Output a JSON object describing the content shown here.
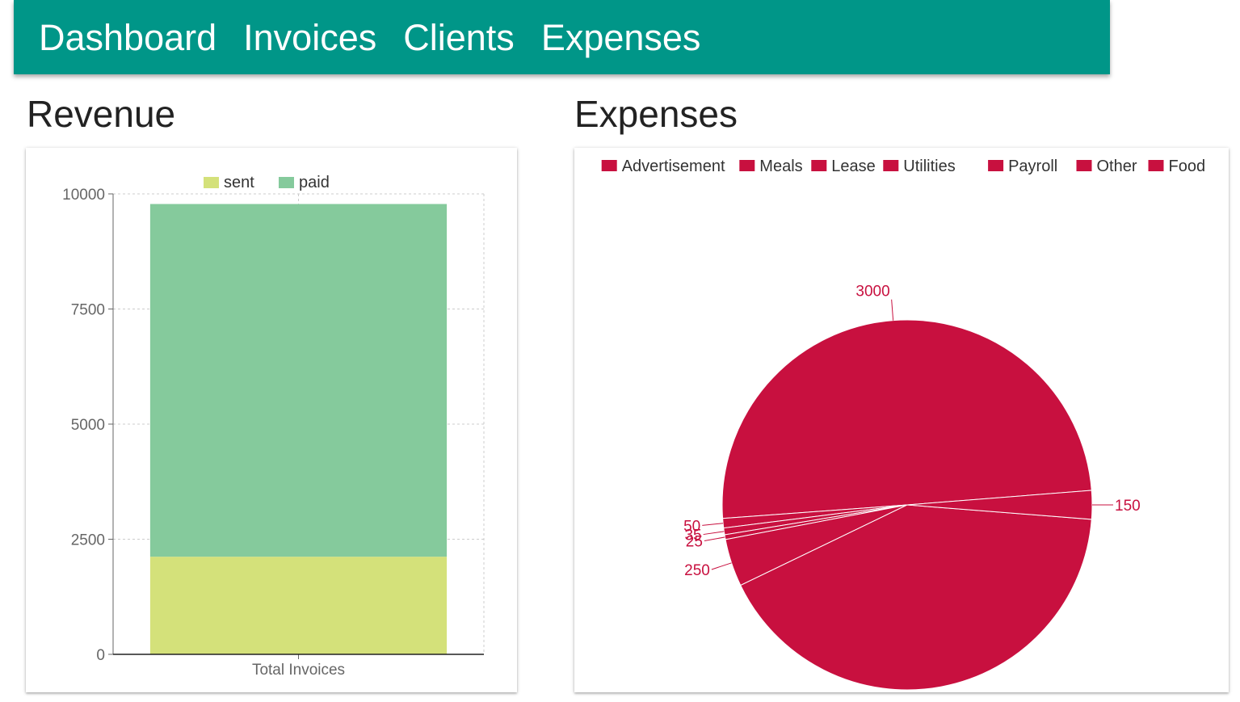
{
  "nav": {
    "items": [
      {
        "label": "Dashboard"
      },
      {
        "label": "Invoices"
      },
      {
        "label": "Clients"
      },
      {
        "label": "Expenses"
      }
    ]
  },
  "revenue": {
    "title": "Revenue",
    "chart_data": {
      "type": "bar",
      "stacked": true,
      "categories": [
        "Total Invoices"
      ],
      "series": [
        {
          "name": "sent",
          "values": [
            2120
          ],
          "color": "#d4e17a"
        },
        {
          "name": "paid",
          "values": [
            7660
          ],
          "color": "#85ca9c"
        }
      ],
      "yticks": [
        "0",
        "2500",
        "5000",
        "7500",
        "10000"
      ],
      "ylim": [
        0,
        10000
      ],
      "grid": true,
      "legend": "top"
    }
  },
  "expenses": {
    "title": "Expenses",
    "chart_data": {
      "type": "pie",
      "color": "#c8103f",
      "legend": "top",
      "labels": [
        "Advertisement",
        "Meals",
        "Lease",
        "Utilities",
        "Payroll",
        "Other",
        "Food"
      ],
      "slices": [
        {
          "label": "Payroll",
          "value": 3000,
          "display": "3000"
        },
        {
          "label": "Meals",
          "value": 50,
          "display": "50"
        },
        {
          "label": "Lease",
          "value": 35,
          "display": "35"
        },
        {
          "label": "Utilities",
          "value": 25,
          "display": "25"
        },
        {
          "label": "Other",
          "value": 250,
          "display": "250"
        },
        {
          "label": "Advertisement",
          "value": 2500,
          "display": ""
        },
        {
          "label": "Food",
          "value": 150,
          "display": "150"
        }
      ]
    }
  }
}
